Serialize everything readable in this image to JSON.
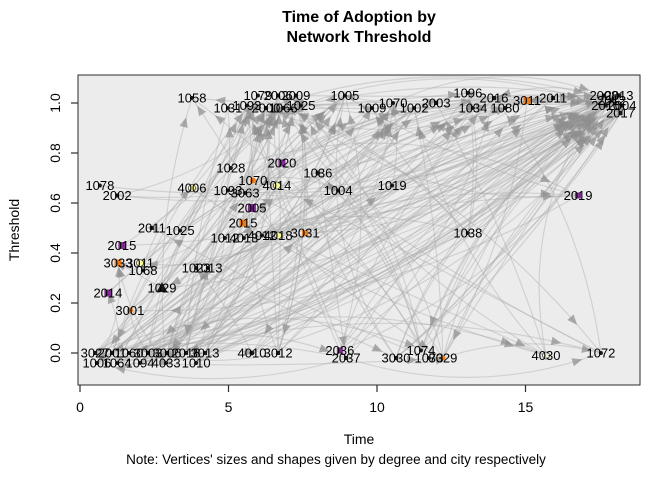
{
  "title": {
    "line1": "Time of Adoption by",
    "line2": "Network Threshold"
  },
  "note": "Note: Vertices' sizes and shapes given by degree and city respectively",
  "axes": {
    "x": {
      "label": "Time",
      "ticks": [
        0,
        5,
        10,
        15
      ],
      "tick_labels": [
        "0",
        "5",
        "10",
        "15"
      ],
      "range": [
        -0.1,
        18.9
      ]
    },
    "y": {
      "label": "Threshold",
      "ticks": [
        0.0,
        0.2,
        0.4,
        0.6,
        0.8,
        1.0
      ],
      "tick_labels": [
        "0.0",
        "0.2",
        "0.4",
        "0.6",
        "0.8",
        "1.0"
      ],
      "range": [
        -0.05,
        1.05
      ]
    }
  },
  "chart_data": {
    "type": "scatter",
    "subtype": "directed-network-over-time",
    "title": "Time of Adoption by Network Threshold",
    "xlabel": "Time",
    "ylabel": "Threshold",
    "xlim": [
      -0.1,
      18.9
    ],
    "ylim": [
      -0.05,
      1.05
    ],
    "grid": false,
    "legend": "none",
    "panel_bg": "#ECECEC",
    "edge_style": {
      "color": "#A9A9A9",
      "opacity": 0.42,
      "width": 1.15,
      "arrow_color": "#8F8F8F",
      "arrow_opacity": 0.72,
      "count": 260
    },
    "node_colors": {
      "k": "#1A1A1A",
      "o": "#E87D1E",
      "p": "#7E2D8E",
      "y": "#FBFB9E",
      "c": "#F0EDD8"
    },
    "label_color": "#000000",
    "nodes": [
      [
        "1058",
        3.77,
        1.02,
        "k",
        "c",
        4
      ],
      [
        "1079",
        5.99,
        1.03,
        "k",
        "c",
        4
      ],
      [
        "2006",
        6.67,
        1.03,
        "k",
        "s",
        4
      ],
      [
        "2009",
        7.27,
        1.03,
        "k",
        "s",
        4
      ],
      [
        "1031",
        4.98,
        0.98,
        "k",
        "c",
        4
      ],
      [
        "1093",
        5.62,
        0.99,
        "k",
        "c",
        4
      ],
      [
        "2000",
        6.26,
        0.98,
        "k",
        "s",
        4
      ],
      [
        "1066",
        6.84,
        0.98,
        "k",
        "c",
        4
      ],
      [
        "1025",
        7.44,
        0.99,
        "k",
        "c",
        4
      ],
      [
        "1005",
        8.92,
        1.03,
        "k",
        "c",
        4
      ],
      [
        "1009",
        9.83,
        0.98,
        "k",
        "c",
        4
      ],
      [
        "1070",
        10.54,
        1.0,
        "k",
        "c",
        4
      ],
      [
        "1002",
        11.25,
        0.98,
        "k",
        "c",
        4
      ],
      [
        "2003",
        11.99,
        1.0,
        "k",
        "s",
        4
      ],
      [
        "1096",
        13.06,
        1.04,
        "k",
        "c",
        4
      ],
      [
        "1034",
        13.23,
        0.98,
        "k",
        "c",
        4
      ],
      [
        "2016",
        13.94,
        1.02,
        "k",
        "s",
        4
      ],
      [
        "1080",
        14.31,
        0.98,
        "k",
        "c",
        4
      ],
      [
        "3011",
        15.05,
        1.01,
        "o",
        "s",
        7
      ],
      [
        "2011",
        15.93,
        1.02,
        "k",
        "s",
        4
      ],
      [
        "2008",
        17.64,
        1.03,
        "k",
        "s",
        4
      ],
      [
        "2013",
        18.15,
        1.03,
        "k",
        "s",
        4
      ],
      [
        "2012",
        17.9,
        1.01,
        "k",
        "s",
        4
      ],
      [
        "2010",
        17.7,
        0.99,
        "k",
        "s",
        4
      ],
      [
        "2004",
        18.25,
        0.99,
        "k",
        "s",
        4
      ],
      [
        "2017",
        18.2,
        0.96,
        "k",
        "s",
        4
      ],
      [
        "1028",
        5.08,
        0.74,
        "k",
        "c",
        4
      ],
      [
        "2020",
        6.8,
        0.76,
        "p",
        "s",
        7
      ],
      [
        "1036",
        8.01,
        0.72,
        "k",
        "c",
        5
      ],
      [
        "1070",
        5.82,
        0.69,
        "o",
        "c",
        6
      ],
      [
        "4014",
        6.63,
        0.67,
        "y",
        "c",
        7
      ],
      [
        "1093",
        4.98,
        0.65,
        "k",
        "c",
        4
      ],
      [
        "3063",
        5.56,
        0.64,
        "k",
        "c",
        4
      ],
      [
        "4006",
        3.77,
        0.66,
        "y",
        "c",
        7
      ],
      [
        "1078",
        0.67,
        0.67,
        "k",
        "c",
        4
      ],
      [
        "2002",
        1.25,
        0.63,
        "k",
        "s",
        4
      ],
      [
        "1004",
        8.69,
        0.65,
        "k",
        "c",
        4
      ],
      [
        "1019",
        10.51,
        0.67,
        "k",
        "c",
        4
      ],
      [
        "2005",
        5.79,
        0.58,
        "p",
        "s",
        8
      ],
      [
        "2019",
        16.77,
        0.63,
        "p",
        "s",
        6
      ],
      [
        "2011",
        2.42,
        0.5,
        "k",
        "s",
        4
      ],
      [
        "1025",
        3.37,
        0.49,
        "k",
        "c",
        4
      ],
      [
        "2015",
        5.49,
        0.52,
        "o",
        "s",
        7
      ],
      [
        "1012",
        4.88,
        0.46,
        "k",
        "c",
        4
      ],
      [
        "4013",
        5.52,
        0.46,
        "k",
        "c",
        4
      ],
      [
        "4012",
        6.13,
        0.47,
        "k",
        "c",
        4
      ],
      [
        "4018",
        6.67,
        0.47,
        "y",
        "c",
        7
      ],
      [
        "3031",
        7.58,
        0.48,
        "o",
        "s",
        6
      ],
      [
        "1038",
        13.06,
        0.48,
        "k",
        "c",
        4
      ],
      [
        "2015",
        1.41,
        0.43,
        "p",
        "s",
        7
      ],
      [
        "3033",
        1.28,
        0.36,
        "o",
        "s",
        7
      ],
      [
        "3011",
        2.02,
        0.36,
        "y",
        "c",
        7
      ],
      [
        "1068",
        2.12,
        0.33,
        "k",
        "c",
        4
      ],
      [
        "1023",
        3.91,
        0.34,
        "k",
        "c",
        4
      ],
      [
        "1013",
        4.31,
        0.34,
        "k",
        "c",
        4
      ],
      [
        "1029",
        2.76,
        0.26,
        "k",
        "t",
        9
      ],
      [
        "2014",
        0.94,
        0.24,
        "p",
        "s",
        7
      ],
      [
        "3001",
        1.68,
        0.17,
        "o",
        "c",
        6
      ],
      [
        "3027",
        0.51,
        0.0,
        "k",
        "s",
        4
      ],
      [
        "2001",
        1.08,
        0.0,
        "k",
        "s",
        4
      ],
      [
        "1060",
        1.65,
        0.0,
        "k",
        "c",
        4
      ],
      [
        "3003",
        2.29,
        0.0,
        "k",
        "s",
        4
      ],
      [
        "3006",
        2.93,
        0.0,
        "k",
        "s",
        4
      ],
      [
        "2018",
        3.57,
        0.0,
        "k",
        "s",
        4
      ],
      [
        "3013",
        4.21,
        0.0,
        "k",
        "s",
        4
      ],
      [
        "4010",
        5.79,
        0.0,
        "k",
        "c",
        5
      ],
      [
        "3012",
        6.67,
        0.0,
        "k",
        "s",
        4
      ],
      [
        "1006",
        0.57,
        -0.04,
        "k",
        "c",
        4
      ],
      [
        "1064",
        1.25,
        -0.04,
        "k",
        "c",
        4
      ],
      [
        "1094",
        2.02,
        -0.04,
        "k",
        "c",
        4
      ],
      [
        "4033",
        2.9,
        -0.04,
        "k",
        "c",
        4
      ],
      [
        "1010",
        3.91,
        -0.04,
        "k",
        "c",
        4
      ],
      [
        "2036",
        8.75,
        0.01,
        "p",
        "s",
        6
      ],
      [
        "2037",
        8.96,
        -0.02,
        "k",
        "s",
        4
      ],
      [
        "3030",
        10.64,
        -0.02,
        "k",
        "s",
        4
      ],
      [
        "1074",
        11.48,
        0.01,
        "k",
        "c",
        4
      ],
      [
        "1073",
        11.75,
        -0.02,
        "k",
        "c",
        4
      ],
      [
        "3029",
        12.22,
        -0.02,
        "o",
        "c",
        5
      ],
      [
        "4030",
        15.69,
        -0.01,
        "c",
        "c",
        7
      ],
      [
        "1072",
        17.54,
        0.0,
        "k",
        "c",
        4
      ]
    ]
  }
}
